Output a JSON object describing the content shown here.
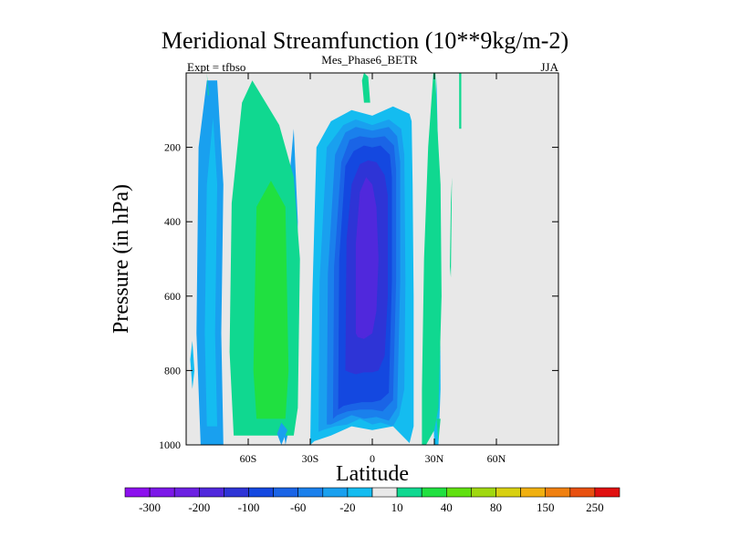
{
  "chart_data": {
    "type": "heatmap",
    "title": "Meridional Streamfunction (10**9kg/m-2)",
    "left_subtitle": "Expt = tfbso",
    "center_subtitle": "Mes_Phase6_BETR",
    "right_subtitle": "JJA",
    "xlabel": "Latitude",
    "ylabel": "Pressure (in hPa)",
    "xlim": [
      -90,
      90
    ],
    "ylim": [
      0,
      1000
    ],
    "y_inverted": true,
    "xticks": [
      {
        "value": -60,
        "label": "60S"
      },
      {
        "value": -30,
        "label": "30S"
      },
      {
        "value": 0,
        "label": "0"
      },
      {
        "value": 30,
        "label": "30N"
      },
      {
        "value": 60,
        "label": "60N"
      }
    ],
    "yticks": [
      {
        "value": 200,
        "label": "200"
      },
      {
        "value": 400,
        "label": "400"
      },
      {
        "value": 600,
        "label": "600"
      },
      {
        "value": 800,
        "label": "800"
      },
      {
        "value": 1000,
        "label": "1000"
      }
    ],
    "background_color": "#e8e8e8",
    "colorbar": {
      "colors": [
        "#8c10ee",
        "#7c18e8",
        "#6c20e2",
        "#5028dc",
        "#2e34d6",
        "#1448e0",
        "#1a64e6",
        "#1a80ec",
        "#19a0ef",
        "#14bcf0",
        "#e8e8e8",
        "#10d890",
        "#20e040",
        "#60e010",
        "#a0d810",
        "#d8d010",
        "#f0b010",
        "#f08010",
        "#e85010",
        "#e01010"
      ],
      "labels": [
        {
          "after_box": 1,
          "text": "-300"
        },
        {
          "after_box": 3,
          "text": "-200"
        },
        {
          "after_box": 5,
          "text": "-100"
        },
        {
          "after_box": 7,
          "text": "-60"
        },
        {
          "after_box": 9,
          "text": "-20"
        },
        {
          "after_box": 11,
          "text": "10"
        },
        {
          "after_box": 13,
          "text": "40"
        },
        {
          "after_box": 15,
          "text": "80"
        },
        {
          "after_box": 17,
          "text": "150"
        },
        {
          "after_box": 19,
          "text": "250"
        }
      ]
    },
    "regions": [
      {
        "name": "nh-midlat-cell-outer",
        "color": "#19a0ef",
        "x": [
          -42,
          -44,
          -42,
          -38,
          -36,
          -38
        ],
        "y": [
          1000,
          900,
          400,
          150,
          400,
          900
        ]
      },
      {
        "name": "polar-cell-outer",
        "color": "#19a0ef",
        "x": [
          -83,
          -85,
          -84,
          -80,
          -75,
          -72,
          -73,
          -72
        ],
        "y": [
          1000,
          700,
          200,
          20,
          20,
          300,
          700,
          1000
        ]
      },
      {
        "name": "polar-cell-inner",
        "color": "#14bcf0",
        "x": [
          -80,
          -81,
          -80,
          -77,
          -75,
          -76,
          -75
        ],
        "y": [
          950,
          700,
          300,
          120,
          300,
          700,
          950
        ]
      },
      {
        "name": "sh-ferrel-outer",
        "color": "#10d890",
        "x": [
          -67,
          -69,
          -68,
          -63,
          -58,
          -45,
          -38,
          -35,
          -36,
          -38
        ],
        "y": [
          975,
          750,
          350,
          80,
          20,
          140,
          280,
          500,
          900,
          975
        ]
      },
      {
        "name": "sh-ferrel-core",
        "color": "#20e040",
        "x": [
          -56,
          -57.5,
          -56,
          -49,
          -42,
          -40.5,
          -42
        ],
        "y": [
          930,
          800,
          360,
          290,
          360,
          800,
          930
        ]
      },
      {
        "name": "hadley-outer",
        "color": "#14bcf0",
        "x": [
          -30,
          -29,
          -27,
          -20,
          -10,
          0,
          10,
          18,
          19,
          19.5,
          20,
          20,
          18,
          10,
          0,
          -10,
          -20,
          -28,
          -30
        ],
        "y": [
          1000,
          600,
          200,
          130,
          100,
          115,
          90,
          110,
          130,
          300,
          600,
          950,
          995,
          950,
          960,
          950,
          975,
          990,
          1000
        ]
      },
      {
        "name": "hadley-10",
        "color": "#19a0ef",
        "x": [
          -26,
          -25.5,
          -22,
          -14,
          -8,
          0,
          8,
          14,
          15.5,
          16,
          15.5,
          13,
          10,
          4,
          0,
          -6,
          -12,
          -18,
          -24,
          -26
        ],
        "y": [
          965,
          560,
          200,
          140,
          125,
          140,
          125,
          150,
          220,
          560,
          850,
          920,
          950,
          940,
          945,
          930,
          945,
          950,
          960,
          965
        ]
      },
      {
        "name": "hadley-20",
        "color": "#1a80ec",
        "x": [
          -22,
          -21.5,
          -18,
          -13,
          -8,
          0,
          8,
          12,
          13.5,
          13.5,
          12,
          8,
          2,
          -4,
          -10,
          -16,
          -20,
          -22
        ],
        "y": [
          945,
          540,
          220,
          160,
          145,
          155,
          145,
          170,
          240,
          560,
          900,
          935,
          925,
          930,
          920,
          935,
          945,
          945
        ]
      },
      {
        "name": "hadley-30",
        "color": "#1a64e6",
        "x": [
          -19,
          -18.5,
          -15,
          -11,
          -6,
          0,
          6,
          10.5,
          11.5,
          11.5,
          10,
          5,
          0,
          -6,
          -12,
          -17,
          -19
        ],
        "y": [
          930,
          520,
          240,
          180,
          170,
          175,
          170,
          195,
          260,
          560,
          880,
          910,
          905,
          905,
          910,
          920,
          930
        ]
      },
      {
        "name": "hadley-40",
        "color": "#1448e0",
        "x": [
          -16.5,
          -16,
          -13,
          -9,
          -4,
          0,
          4,
          8.5,
          9.5,
          9.5,
          8,
          4,
          0,
          -5,
          -10,
          -14,
          -16.5
        ],
        "y": [
          905,
          500,
          250,
          210,
          195,
          200,
          195,
          220,
          280,
          560,
          860,
          880,
          885,
          885,
          890,
          895,
          905
        ]
      },
      {
        "name": "hadley-core",
        "color": "#2e34d6",
        "x": [
          -13,
          -12.5,
          -10,
          -6,
          -2,
          2,
          6,
          7.5,
          7.5,
          6,
          3,
          0,
          -4,
          -8,
          -11,
          -13
        ],
        "y": [
          800,
          450,
          300,
          245,
          235,
          240,
          275,
          330,
          600,
          760,
          800,
          805,
          805,
          810,
          805,
          800
        ]
      },
      {
        "name": "hadley-max",
        "color": "#5028dc",
        "x": [
          -8,
          -8,
          -6,
          -3,
          0,
          2,
          3,
          2,
          0,
          -4,
          -7,
          -8
        ],
        "y": [
          700,
          460,
          320,
          280,
          300,
          360,
          500,
          640,
          700,
          715,
          710,
          700
        ]
      },
      {
        "name": "nh-cell-outer",
        "color": "#14bcf0",
        "x": [
          30,
          29,
          29.5,
          31,
          32.5,
          33,
          32
        ],
        "y": [
          1000,
          850,
          400,
          10,
          400,
          850,
          1000
        ]
      },
      {
        "name": "nh-cell-green",
        "color": "#10d890",
        "x": [
          24,
          24,
          25,
          27,
          29.5,
          30.5,
          31.5,
          33,
          33.5,
          32,
          30,
          28,
          26,
          25
        ],
        "y": [
          1000,
          850,
          500,
          200,
          0,
          0,
          150,
          300,
          600,
          900,
          960,
          980,
          1000,
          1000
        ]
      },
      {
        "name": "nh-cell-green-tail",
        "color": "#10d890",
        "x": [
          32,
          31,
          33,
          32
        ],
        "y": [
          990,
          930,
          930,
          990
        ]
      },
      {
        "name": "nh-band",
        "color": "#10d890",
        "x": [
          37.5,
          38,
          38.5,
          38,
          37.5
        ],
        "y": [
          520,
          350,
          280,
          550,
          520
        ]
      },
      {
        "name": "tropics-top",
        "color": "#10d890",
        "x": [
          -4,
          -5,
          -4,
          -2,
          -1
        ],
        "y": [
          80,
          20,
          0,
          10,
          80
        ]
      },
      {
        "name": "nh-top-sliver",
        "color": "#10d890",
        "x": [
          42,
          42,
          43,
          43
        ],
        "y": [
          0,
          150,
          150,
          0
        ]
      },
      {
        "name": "sh-sliver",
        "color": "#10d890",
        "x": [
          -80,
          -79.5,
          -79,
          -80
        ],
        "y": [
          0,
          60,
          60,
          0
        ]
      },
      {
        "name": "polar-left",
        "color": "#14bcf0",
        "x": [
          -87,
          -88,
          -87,
          -86
        ],
        "y": [
          850,
          770,
          720,
          800
        ]
      },
      {
        "name": "sh-tail",
        "color": "#19a0ef",
        "x": [
          -44,
          -46,
          -44,
          -41
        ],
        "y": [
          1000,
          970,
          940,
          960
        ]
      }
    ]
  }
}
